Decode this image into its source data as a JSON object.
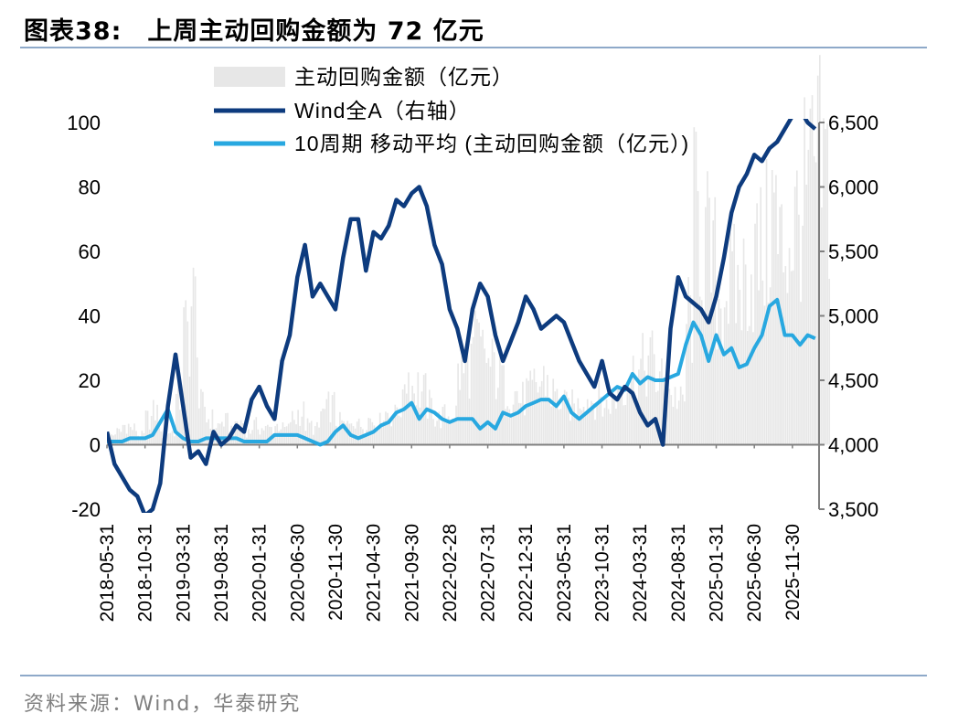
{
  "header": {
    "number": "图表38:",
    "text": "上周主动回购金额为 72 亿元"
  },
  "footer": {
    "source": "资料来源：Wind，华泰研究"
  },
  "chart_data": {
    "type": "bar+line",
    "left_axis": {
      "ticks": [
        "100",
        "80",
        "60",
        "40",
        "20",
        "0",
        "-20"
      ],
      "values": [
        100,
        80,
        60,
        40,
        20,
        0,
        -20
      ],
      "ylim": [
        -20,
        100
      ]
    },
    "right_axis": {
      "ticks": [
        "6,500",
        "6,000",
        "5,500",
        "5,000",
        "4,500",
        "4,000",
        "3,500"
      ],
      "values": [
        6500,
        6000,
        5500,
        5000,
        4500,
        4000,
        3500
      ],
      "ylim": [
        3500,
        6500
      ]
    },
    "x_ticks": [
      "2018-05-31",
      "2018-10-31",
      "2019-03-31",
      "2019-08-31",
      "2020-01-31",
      "2020-06-30",
      "2020-11-30",
      "2021-04-30",
      "2021-09-30",
      "2022-02-28",
      "2022-07-31",
      "2022-12-31",
      "2023-05-31",
      "2023-10-31",
      "2024-03-31",
      "2024-08-31",
      "2025-01-31",
      "2025-06-30",
      "2025-11-30"
    ],
    "x_tick_months": [
      0,
      5,
      10,
      15,
      20,
      25,
      30,
      35,
      40,
      45,
      50,
      55,
      60,
      65,
      70,
      75,
      80,
      85,
      90
    ],
    "x_end_month": 93.5,
    "grid": false,
    "legend_position": "top",
    "colors": {
      "bars": "#e7e7e7",
      "wind": "#0d3b7e",
      "ma": "#28a8e0"
    },
    "series": [
      {
        "name": "主动回购金额（亿元）",
        "axis": "left",
        "kind": "bar",
        "monthly_level": [
          3,
          4,
          6,
          5,
          3,
          8,
          10,
          3,
          4,
          14,
          34,
          43,
          12,
          8,
          6,
          7,
          5,
          7,
          4,
          6,
          5,
          5,
          6,
          5,
          8,
          10,
          6,
          5,
          10,
          12,
          7,
          6,
          8,
          6,
          8,
          7,
          10,
          9,
          12,
          22,
          18,
          16,
          12,
          8,
          9,
          10,
          22,
          25,
          30,
          28,
          24,
          22,
          18,
          16,
          14,
          16,
          18,
          20,
          16,
          14,
          12,
          12,
          15,
          14,
          14,
          12,
          14,
          18,
          20,
          22,
          24,
          26,
          20,
          18,
          15,
          13,
          40,
          70,
          62,
          55,
          45,
          50,
          48,
          50,
          55,
          58,
          62,
          72,
          60,
          64,
          68,
          75,
          80,
          85,
          82
        ]
      },
      {
        "name": "Wind全A（右轴）",
        "axis": "right",
        "kind": "line",
        "x_month": [
          0,
          1,
          2,
          3,
          4,
          5,
          6,
          7,
          8,
          9,
          10,
          11,
          12,
          13,
          14,
          15,
          16,
          17,
          18,
          19,
          20,
          21,
          22,
          23,
          24,
          25,
          26,
          27,
          28,
          29,
          30,
          31,
          32,
          33,
          34,
          35,
          36,
          37,
          38,
          39,
          40,
          41,
          42,
          43,
          44,
          45,
          46,
          47,
          48,
          49,
          50,
          51,
          52,
          53,
          54,
          55,
          56,
          57,
          58,
          59,
          60,
          61,
          62,
          63,
          64,
          65,
          66,
          67,
          68,
          69,
          70,
          71,
          72,
          73,
          74,
          75,
          76,
          77,
          78,
          79,
          80,
          81,
          82,
          83,
          84,
          85,
          86,
          87,
          88,
          89,
          90,
          91,
          92,
          93
        ],
        "y": [
          4100,
          3850,
          3750,
          3650,
          3600,
          3450,
          3500,
          3700,
          4300,
          4700,
          4300,
          3900,
          3950,
          3850,
          4100,
          4000,
          4050,
          4150,
          4100,
          4350,
          4450,
          4300,
          4200,
          4650,
          4850,
          5300,
          5550,
          5150,
          5250,
          5150,
          5050,
          5450,
          5750,
          5750,
          5350,
          5650,
          5600,
          5700,
          5900,
          5850,
          5950,
          6000,
          5850,
          5550,
          5400,
          5050,
          4900,
          4650,
          5050,
          5250,
          5150,
          4850,
          4650,
          4800,
          4950,
          5150,
          5050,
          4900,
          4950,
          5000,
          4950,
          4800,
          4650,
          4550,
          4450,
          4650,
          4400,
          4350,
          4450,
          4400,
          4250,
          4150,
          4200,
          4000,
          4900,
          5300,
          5150,
          5100,
          5050,
          4950,
          5150,
          5450,
          5800,
          6000,
          6100,
          6250,
          6200,
          6300,
          6350,
          6450,
          6550,
          6600,
          6500,
          6450
        ]
      },
      {
        "name": "10周期 移动平均 (主动回购金额（亿元）)",
        "axis": "left",
        "kind": "line",
        "x_month": [
          0,
          1,
          2,
          3,
          4,
          5,
          6,
          7,
          8,
          9,
          10,
          11,
          12,
          13,
          14,
          15,
          16,
          17,
          18,
          19,
          20,
          21,
          22,
          23,
          24,
          25,
          26,
          27,
          28,
          29,
          30,
          31,
          32,
          33,
          34,
          35,
          36,
          37,
          38,
          39,
          40,
          41,
          42,
          43,
          44,
          45,
          46,
          47,
          48,
          49,
          50,
          51,
          52,
          53,
          54,
          55,
          56,
          57,
          58,
          59,
          60,
          61,
          62,
          63,
          64,
          65,
          66,
          67,
          68,
          69,
          70,
          71,
          72,
          73,
          74,
          75,
          76,
          77,
          78,
          79,
          80,
          81,
          82,
          83,
          84,
          85,
          86,
          87,
          88,
          89,
          90,
          91,
          92,
          93
        ],
        "y": [
          1,
          1,
          1,
          2,
          2,
          2,
          3,
          7,
          11,
          4,
          2,
          1,
          1,
          2,
          2,
          2,
          2,
          2,
          1,
          1,
          1,
          1,
          3,
          3,
          3,
          3,
          2,
          1,
          0,
          1,
          4,
          6,
          3,
          2,
          3,
          4,
          6,
          7,
          10,
          11,
          13,
          8,
          11,
          10,
          8,
          7,
          8,
          8,
          8,
          5,
          7,
          5,
          10,
          9,
          10,
          12,
          13,
          14,
          14,
          12,
          15,
          10,
          8,
          10,
          12,
          14,
          16,
          18,
          17,
          22,
          19,
          21,
          20,
          20,
          21,
          22,
          31,
          38,
          34,
          26,
          34,
          28,
          30,
          24,
          25,
          30,
          34,
          43,
          45,
          34,
          34,
          31,
          34,
          33
        ]
      }
    ]
  }
}
